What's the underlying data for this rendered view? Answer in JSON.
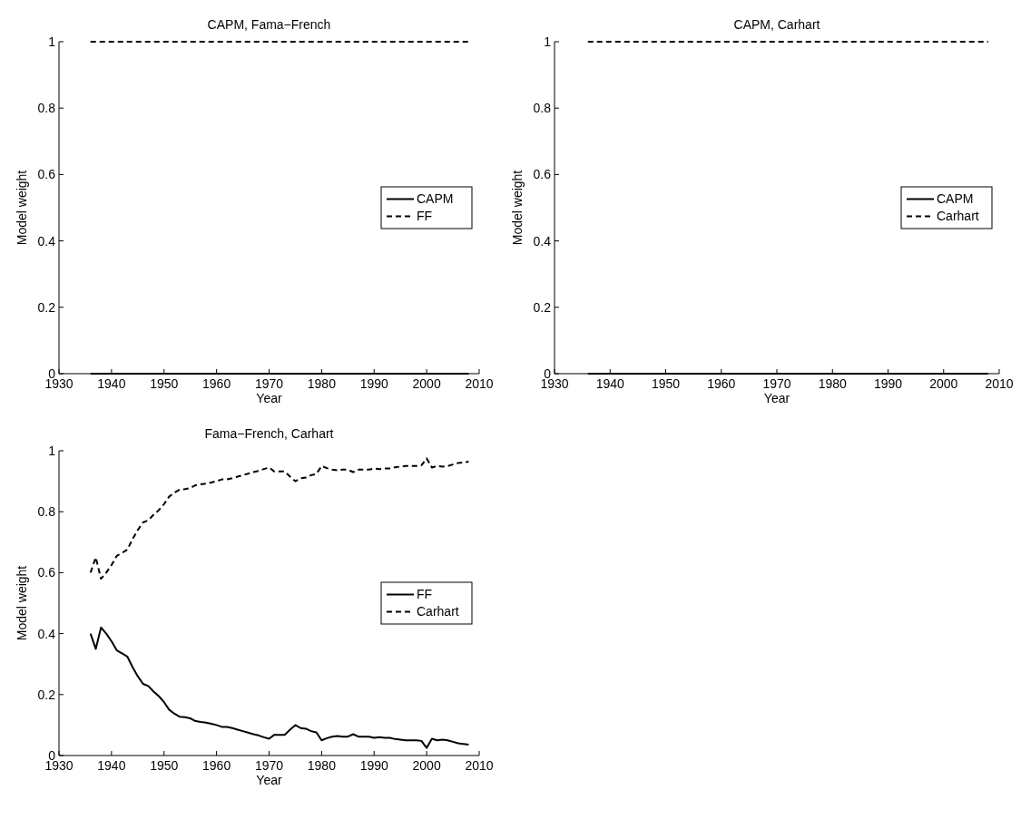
{
  "chart_data": [
    {
      "type": "line",
      "title": "CAPM, Fama−French",
      "xlabel": "Year",
      "ylabel": "Model weight",
      "xlim": [
        1930,
        2010
      ],
      "xticks": [
        1930,
        1940,
        1950,
        1960,
        1970,
        1980,
        1990,
        2000,
        2010
      ],
      "ylim": [
        0,
        1
      ],
      "yticks": [
        0,
        0.2,
        0.4,
        0.6,
        0.8,
        1
      ],
      "grid": false,
      "legend": "right",
      "x": [
        1936,
        2008
      ],
      "series": [
        {
          "name": "CAPM",
          "color": "#000000",
          "line_style": "solid",
          "values": [
            0,
            0
          ]
        },
        {
          "name": "FF",
          "color": "#000000",
          "line_style": "dashed",
          "values": [
            1,
            1
          ]
        }
      ]
    },
    {
      "type": "line",
      "title": "CAPM, Carhart",
      "xlabel": "Year",
      "ylabel": "Model weight",
      "xlim": [
        1930,
        2010
      ],
      "xticks": [
        1930,
        1940,
        1950,
        1960,
        1970,
        1980,
        1990,
        2000,
        2010
      ],
      "ylim": [
        0,
        1
      ],
      "yticks": [
        0,
        0.2,
        0.4,
        0.6,
        0.8,
        1
      ],
      "grid": false,
      "legend": "right",
      "x": [
        1936,
        2008
      ],
      "series": [
        {
          "name": "CAPM",
          "color": "#000000",
          "line_style": "solid",
          "values": [
            0,
            0
          ]
        },
        {
          "name": "Carhart",
          "color": "#000000",
          "line_style": "dashed",
          "values": [
            1,
            1
          ]
        }
      ]
    },
    {
      "type": "line",
      "title": "Fama−French, Carhart",
      "xlabel": "Year",
      "ylabel": "Model weight",
      "xlim": [
        1930,
        2010
      ],
      "xticks": [
        1930,
        1940,
        1950,
        1960,
        1970,
        1980,
        1990,
        2000,
        2010
      ],
      "ylim": [
        0,
        1
      ],
      "yticks": [
        0,
        0.2,
        0.4,
        0.6,
        0.8,
        1
      ],
      "grid": false,
      "legend": "right",
      "x": [
        1936,
        1937,
        1938,
        1939,
        1940,
        1941,
        1942,
        1943,
        1944,
        1945,
        1946,
        1947,
        1948,
        1949,
        1950,
        1951,
        1952,
        1953,
        1954,
        1955,
        1956,
        1957,
        1958,
        1959,
        1960,
        1961,
        1962,
        1963,
        1964,
        1965,
        1966,
        1967,
        1968,
        1969,
        1970,
        1971,
        1972,
        1973,
        1974,
        1975,
        1976,
        1977,
        1978,
        1979,
        1980,
        1981,
        1982,
        1983,
        1984,
        1985,
        1986,
        1987,
        1988,
        1989,
        1990,
        1991,
        1992,
        1993,
        1994,
        1995,
        1996,
        1997,
        1998,
        1999,
        2000,
        2001,
        2002,
        2003,
        2004,
        2005,
        2006,
        2007,
        2008
      ],
      "series": [
        {
          "name": "FF",
          "color": "#000000",
          "line_style": "solid",
          "values": [
            0.4,
            0.35,
            0.42,
            0.4,
            0.375,
            0.345,
            0.335,
            0.325,
            0.29,
            0.26,
            0.235,
            0.228,
            0.21,
            0.195,
            0.175,
            0.15,
            0.137,
            0.127,
            0.126,
            0.122,
            0.113,
            0.11,
            0.108,
            0.104,
            0.1,
            0.094,
            0.094,
            0.09,
            0.085,
            0.08,
            0.075,
            0.07,
            0.066,
            0.06,
            0.055,
            0.068,
            0.068,
            0.068,
            0.085,
            0.1,
            0.09,
            0.088,
            0.08,
            0.076,
            0.05,
            0.057,
            0.062,
            0.064,
            0.062,
            0.062,
            0.07,
            0.062,
            0.062,
            0.062,
            0.058,
            0.06,
            0.058,
            0.058,
            0.054,
            0.052,
            0.05,
            0.05,
            0.05,
            0.048,
            0.025,
            0.055,
            0.05,
            0.052,
            0.05,
            0.045,
            0.04,
            0.038,
            0.036
          ]
        },
        {
          "name": "Carhart",
          "color": "#000000",
          "line_style": "dashed",
          "values": [
            0.6,
            0.65,
            0.58,
            0.6,
            0.625,
            0.655,
            0.665,
            0.675,
            0.71,
            0.74,
            0.765,
            0.772,
            0.79,
            0.805,
            0.825,
            0.85,
            0.863,
            0.873,
            0.874,
            0.878,
            0.887,
            0.89,
            0.892,
            0.896,
            0.9,
            0.906,
            0.906,
            0.91,
            0.915,
            0.92,
            0.925,
            0.93,
            0.934,
            0.94,
            0.945,
            0.932,
            0.932,
            0.932,
            0.915,
            0.9,
            0.91,
            0.912,
            0.92,
            0.924,
            0.95,
            0.943,
            0.938,
            0.936,
            0.938,
            0.938,
            0.93,
            0.938,
            0.938,
            0.938,
            0.942,
            0.94,
            0.942,
            0.942,
            0.946,
            0.948,
            0.95,
            0.95,
            0.95,
            0.952,
            0.975,
            0.945,
            0.95,
            0.948,
            0.95,
            0.955,
            0.96,
            0.962,
            0.964
          ]
        }
      ]
    }
  ]
}
